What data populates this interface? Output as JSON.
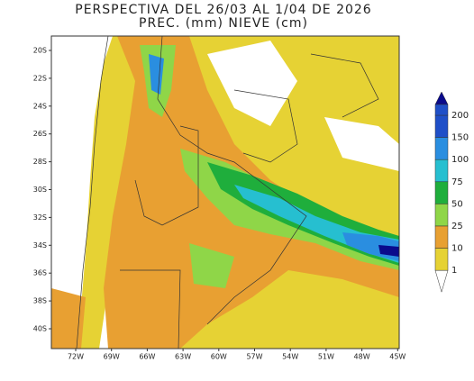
{
  "header": {
    "title": "PERSPECTIVA DEL 26/03 AL 1/04 DE 2026",
    "subtitle": "PREC. (mm) NIEVE (cm)"
  },
  "map": {
    "lat_labels": [
      "20S",
      "22S",
      "24S",
      "26S",
      "28S",
      "30S",
      "32S",
      "34S",
      "36S",
      "38S",
      "40S"
    ],
    "lon_labels": [
      "72W",
      "69W",
      "66W",
      "63W",
      "60W",
      "57W",
      "54W",
      "51W",
      "48W",
      "45W"
    ]
  },
  "legend": {
    "levels": [
      "200",
      "150",
      "100",
      "75",
      "50",
      "25",
      "10",
      "1"
    ],
    "colors": [
      "#0a0a8c",
      "#1f4fc8",
      "#2a8ee0",
      "#26bfd0",
      "#1fae3c",
      "#8fd648",
      "#e8a032",
      "#e6d234",
      "#ffffff"
    ]
  }
}
